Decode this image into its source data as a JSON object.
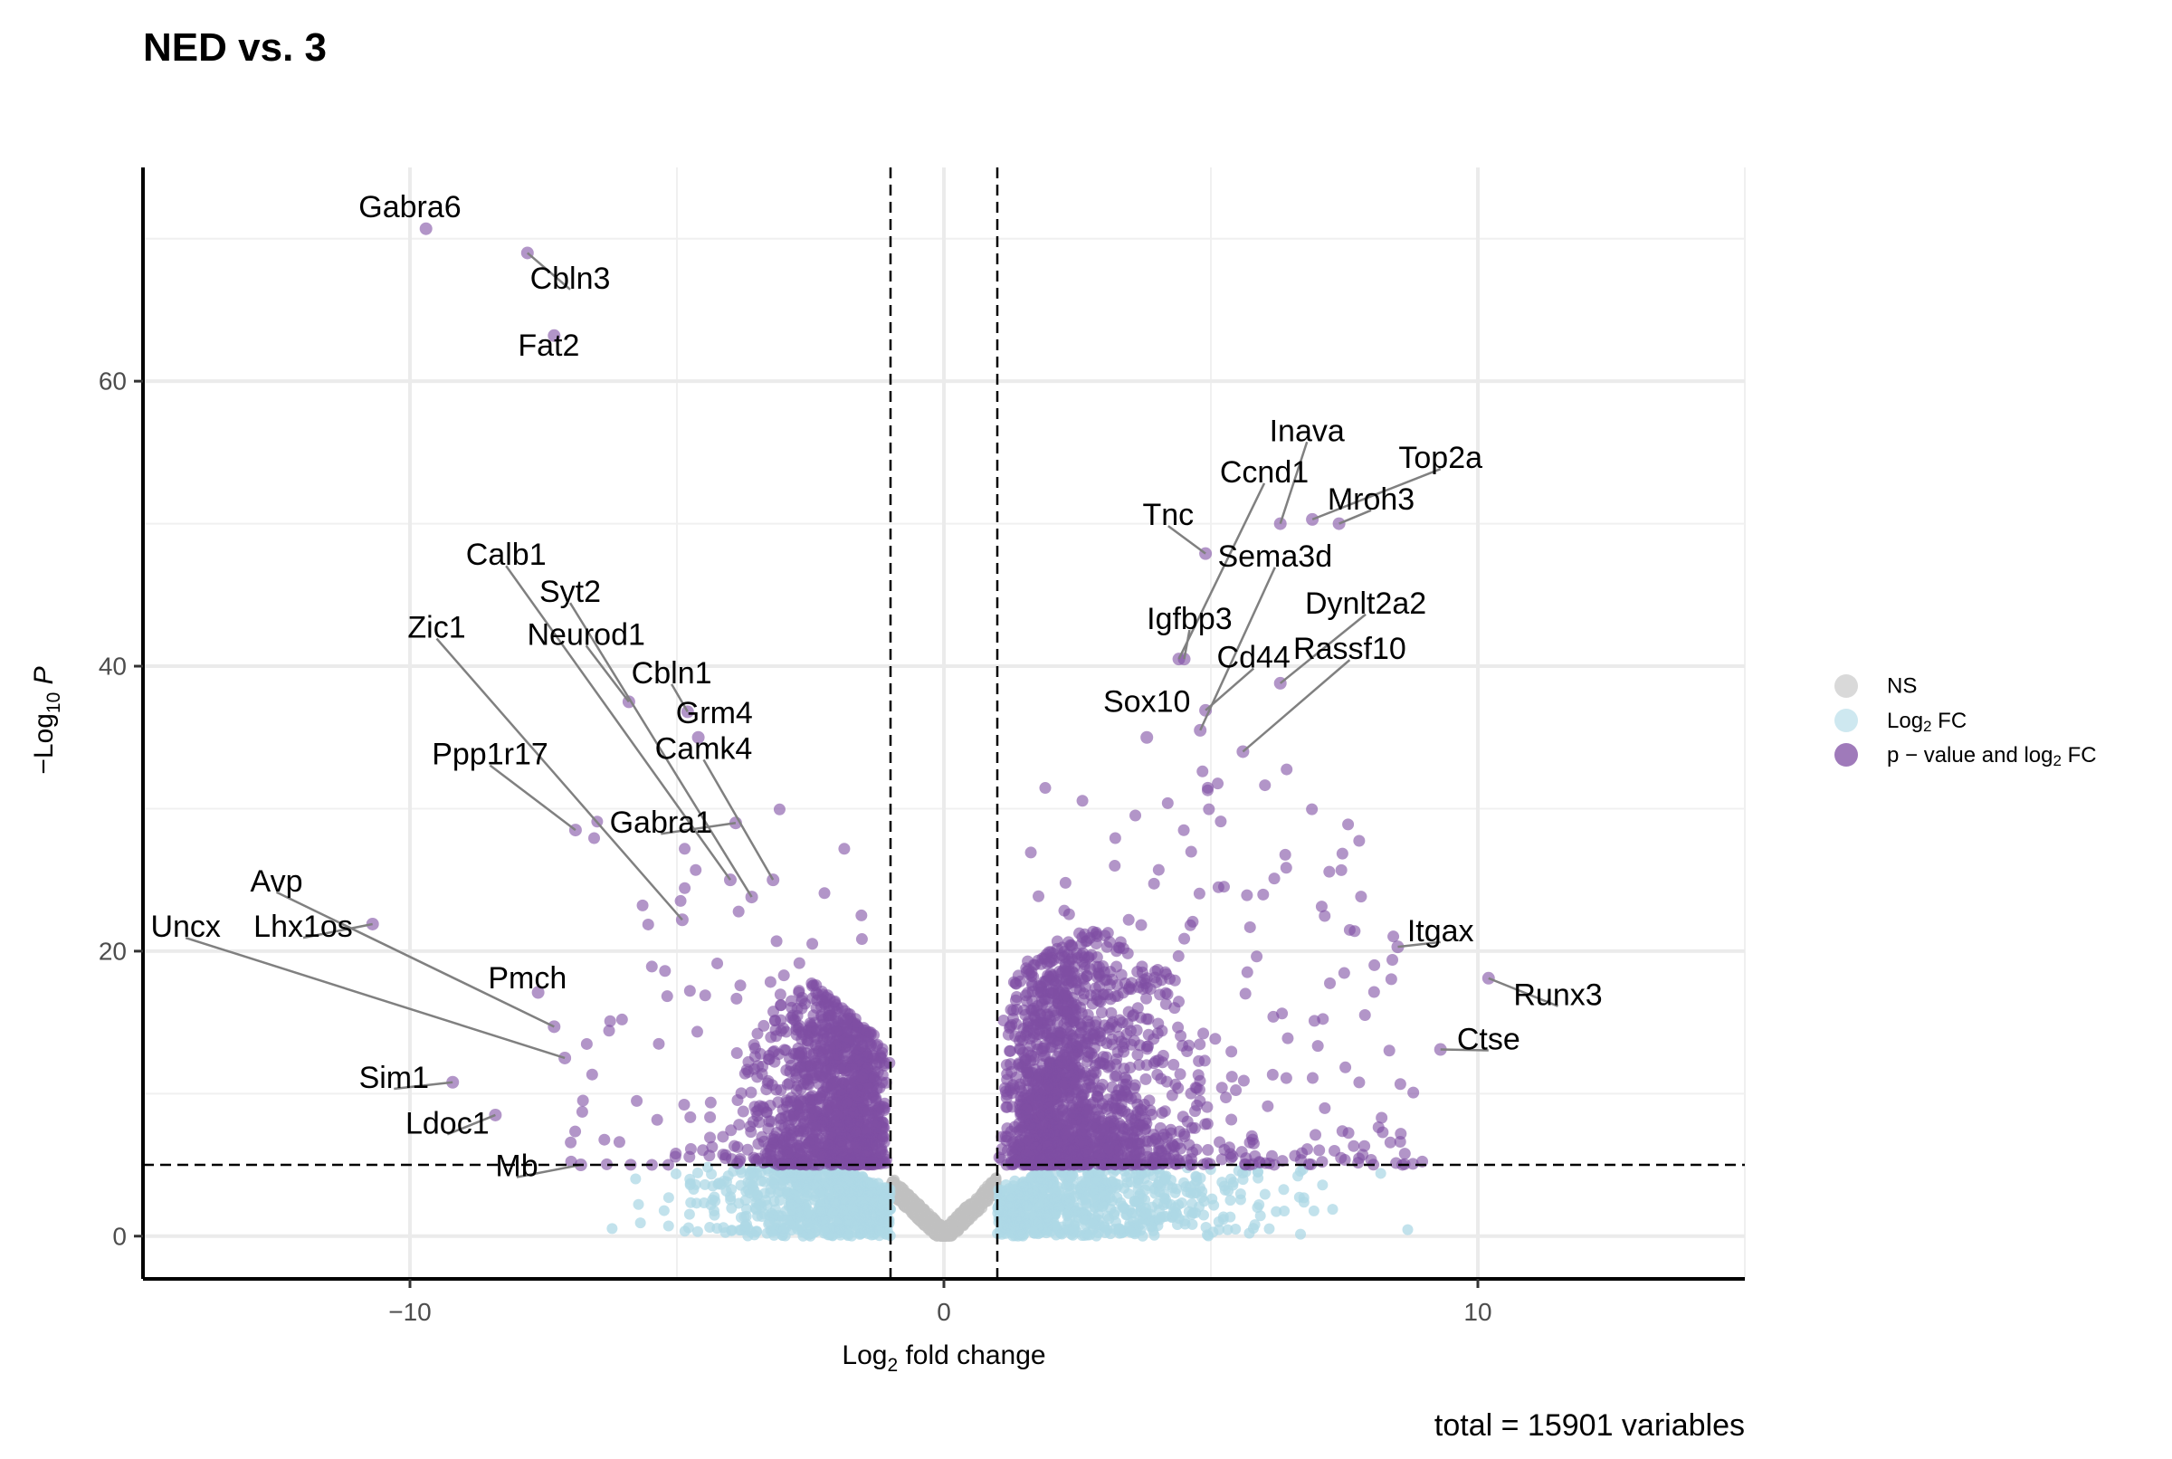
{
  "chart_data": {
    "type": "scatter",
    "title": "NED vs. 3",
    "xlabel": "Log2 fold change",
    "ylabel": "−Log10 P",
    "caption": "total = 15901 variables",
    "xlim": [
      -15,
      15
    ],
    "ylim": [
      -3,
      75
    ],
    "x_ticks": [
      -10,
      0,
      10
    ],
    "y_ticks": [
      0,
      20,
      40,
      60
    ],
    "x_tick_labels": [
      "−10",
      "0",
      "10"
    ],
    "y_tick_labels": [
      "0",
      "20",
      "40",
      "60"
    ],
    "grid": true,
    "legend_position": "right",
    "thresholds": {
      "log2fc": 1,
      "neg_log10_p": 5
    },
    "colors": {
      "NS": "#c0c0c0",
      "log2fc": "#add8e6",
      "both": "#7f4ea3",
      "connector": "#808080",
      "threshold": "#000000"
    },
    "legend": [
      {
        "key": "NS",
        "label": "NS"
      },
      {
        "key": "log2fc",
        "label": "Log2 FC",
        "label_main": "Log",
        "label_sub": "2",
        "label_tail": " FC"
      },
      {
        "key": "both",
        "label": "p − value and log2 FC",
        "label_main": "p − value and log",
        "label_sub": "2",
        "label_tail": " FC"
      }
    ],
    "labeled_points": [
      {
        "gene": "Gabra6",
        "x": -9.7,
        "y": 70.7,
        "lx": -10.0,
        "ly": 72.2
      },
      {
        "gene": "Cbln3",
        "x": -7.8,
        "y": 69.0,
        "lx": -7.0,
        "ly": 67.2
      },
      {
        "gene": "Fat2",
        "x": -7.3,
        "y": 63.2,
        "lx": -7.4,
        "ly": 62.5
      },
      {
        "gene": "Calb1",
        "x": -4.0,
        "y": 25.0,
        "lx": -8.2,
        "ly": 47.8
      },
      {
        "gene": "Syt2",
        "x": -3.6,
        "y": 23.8,
        "lx": -7.0,
        "ly": 45.2
      },
      {
        "gene": "Zic1",
        "x": -4.9,
        "y": 22.2,
        "lx": -9.5,
        "ly": 42.7
      },
      {
        "gene": "Neurod1",
        "x": -5.9,
        "y": 37.5,
        "lx": -6.7,
        "ly": 42.2
      },
      {
        "gene": "Cbln1",
        "x": -4.8,
        "y": 36.8,
        "lx": -5.1,
        "ly": 39.5
      },
      {
        "gene": "Grm4",
        "x": -4.6,
        "y": 35.0,
        "lx": -4.3,
        "ly": 36.7
      },
      {
        "gene": "Camk4",
        "x": -3.2,
        "y": 25.0,
        "lx": -4.5,
        "ly": 34.2
      },
      {
        "gene": "Ppp1r17",
        "x": -6.9,
        "y": 28.5,
        "lx": -8.5,
        "ly": 33.8
      },
      {
        "gene": "Gabra1",
        "x": -3.9,
        "y": 29.0,
        "lx": -5.3,
        "ly": 29.0
      },
      {
        "gene": "Avp",
        "x": -7.3,
        "y": 14.7,
        "lx": -12.5,
        "ly": 24.9
      },
      {
        "gene": "Uncx",
        "x": -7.1,
        "y": 12.5,
        "lx": -14.2,
        "ly": 21.7
      },
      {
        "gene": "Lhx1os",
        "x": -10.7,
        "y": 21.9,
        "lx": -12.0,
        "ly": 21.7
      },
      {
        "gene": "Pmch",
        "x": -7.6,
        "y": 17.1,
        "lx": -7.8,
        "ly": 18.1
      },
      {
        "gene": "Sim1",
        "x": -9.2,
        "y": 10.8,
        "lx": -10.3,
        "ly": 11.1
      },
      {
        "gene": "Ldoc1",
        "x": -8.4,
        "y": 8.5,
        "lx": -9.3,
        "ly": 7.9
      },
      {
        "gene": "Mb",
        "x": -6.8,
        "y": 5.0,
        "lx": -8.0,
        "ly": 4.9
      },
      {
        "gene": "Inava",
        "x": 6.3,
        "y": 50.0,
        "lx": 6.8,
        "ly": 56.5
      },
      {
        "gene": "Top2a",
        "x": 6.9,
        "y": 50.3,
        "lx": 9.3,
        "ly": 54.6
      },
      {
        "gene": "Ccnd1",
        "x": 4.4,
        "y": 40.5,
        "lx": 6.0,
        "ly": 53.6
      },
      {
        "gene": "Mroh3",
        "x": 7.4,
        "y": 50.0,
        "lx": 8.0,
        "ly": 51.7
      },
      {
        "gene": "Tnc",
        "x": 4.9,
        "y": 47.9,
        "lx": 4.2,
        "ly": 50.6
      },
      {
        "gene": "Sema3d",
        "x": 4.8,
        "y": 35.5,
        "lx": 6.2,
        "ly": 47.7
      },
      {
        "gene": "Dynlt2a2",
        "x": 6.3,
        "y": 38.8,
        "lx": 7.9,
        "ly": 44.4
      },
      {
        "gene": "Igfbp3",
        "x": 4.5,
        "y": 40.5,
        "lx": 4.6,
        "ly": 43.3
      },
      {
        "gene": "Rassf10",
        "x": 5.6,
        "y": 34.0,
        "lx": 7.6,
        "ly": 41.2
      },
      {
        "gene": "Cd44",
        "x": 4.9,
        "y": 36.9,
        "lx": 5.8,
        "ly": 40.6
      },
      {
        "gene": "Sox10",
        "x": 3.8,
        "y": 35.0,
        "lx": 3.8,
        "ly": 37.5
      },
      {
        "gene": "Itgax",
        "x": 8.5,
        "y": 20.3,
        "lx": 9.3,
        "ly": 21.4
      },
      {
        "gene": "Runx3",
        "x": 10.2,
        "y": 18.1,
        "lx": 11.5,
        "ly": 16.9
      },
      {
        "gene": "Ctse",
        "x": 9.3,
        "y": 13.1,
        "lx": 10.2,
        "ly": 13.8
      }
    ]
  }
}
